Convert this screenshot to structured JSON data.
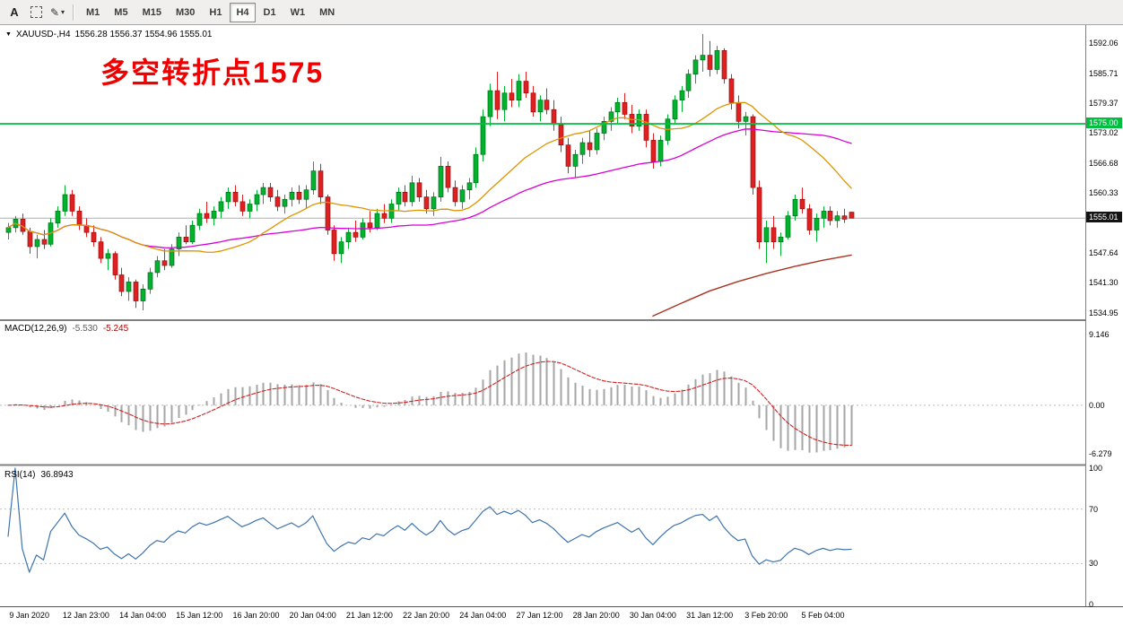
{
  "toolbar": {
    "button_a_label": "A",
    "timeframes": [
      "M1",
      "M5",
      "M15",
      "M30",
      "H1",
      "H4",
      "D1",
      "W1",
      "MN"
    ],
    "active_timeframe": "H4"
  },
  "main_chart": {
    "title": {
      "symbol_tf": "XAUUSD-,H4",
      "ohlc": "1556.28 1556.37 1554.96 1555.01"
    },
    "annotation": "多空转折点1575",
    "hline_label": "1575.00",
    "price_tag": "1555.01",
    "axis_labels": [
      "1592.06",
      "1585.71",
      "1579.37",
      "1573.02",
      "1566.68",
      "1560.33",
      "1547.64",
      "1541.30",
      "1534.95"
    ]
  },
  "macd_panel": {
    "title": "MACD(12,26,9)",
    "main_value": "-5.530",
    "signal_value": "-5.245",
    "axis_labels": [
      "9.146",
      "0.00",
      "-6.279"
    ]
  },
  "rsi_panel": {
    "title": "RSI(14)",
    "value": "36.8943",
    "axis_labels": [
      "100",
      "70",
      "30",
      "0"
    ]
  },
  "colors": {
    "bull": "#00b22d",
    "bull_border": "#006b19",
    "bear": "#e02020",
    "bear_border": "#8f0f0f",
    "ma_fast": "#dd9500",
    "ma_slow": "#d800d8",
    "ma_long": "#aa3322",
    "macd_hist": "#a6a6a6",
    "macd_signal": "#cc2222",
    "rsi": "#3e74ad",
    "hline": "#00bf40",
    "annotation": "#f00000",
    "price_tag_bg": "#141414",
    "current_price_line": "#b0b0b0"
  },
  "chart_data": {
    "type": "candlestick",
    "symbol": "XAUUSD-",
    "timeframe": "H4",
    "current_price": 1555.01,
    "price_axis": {
      "min": 1533.8,
      "max": 1595.5
    },
    "candles": [
      [
        1552,
        1554,
        1550.5,
        1553
      ],
      [
        1553,
        1555.5,
        1552,
        1554.8
      ],
      [
        1554.8,
        1556,
        1551.5,
        1552.2
      ],
      [
        1552.2,
        1553,
        1547.5,
        1549
      ],
      [
        1549,
        1551.5,
        1546.5,
        1550.5
      ],
      [
        1550.5,
        1552.5,
        1548.5,
        1549.5
      ],
      [
        1549.5,
        1555,
        1549,
        1554
      ],
      [
        1554,
        1557.5,
        1553,
        1556.5
      ],
      [
        1556.5,
        1562,
        1555.5,
        1560
      ],
      [
        1560,
        1561,
        1555.5,
        1556.5
      ],
      [
        1556.5,
        1557.5,
        1552.5,
        1553.5
      ],
      [
        1553.5,
        1555,
        1551,
        1552
      ],
      [
        1552,
        1553.5,
        1549,
        1550
      ],
      [
        1550,
        1551,
        1545.5,
        1546.5
      ],
      [
        1546.5,
        1548.5,
        1544,
        1547.5
      ],
      [
        1547.5,
        1548,
        1542,
        1543
      ],
      [
        1543,
        1544.5,
        1538.5,
        1539.5
      ],
      [
        1539.5,
        1542.5,
        1537.5,
        1541.5
      ],
      [
        1541.5,
        1542,
        1536,
        1537.5
      ],
      [
        1537.5,
        1541,
        1535.5,
        1540
      ],
      [
        1540,
        1544.5,
        1539,
        1543.5
      ],
      [
        1543.5,
        1547,
        1542.5,
        1546
      ],
      [
        1546,
        1548.5,
        1544,
        1545
      ],
      [
        1545,
        1549.5,
        1544.5,
        1548.5
      ],
      [
        1548.5,
        1552,
        1547,
        1551
      ],
      [
        1551,
        1553.5,
        1549.5,
        1550
      ],
      [
        1550,
        1554.5,
        1549.5,
        1553.5
      ],
      [
        1553.5,
        1557,
        1552.5,
        1556
      ],
      [
        1556,
        1558.5,
        1554,
        1555
      ],
      [
        1555,
        1557.5,
        1553.5,
        1556.5
      ],
      [
        1556.5,
        1559.5,
        1555,
        1558.5
      ],
      [
        1558.5,
        1561.5,
        1557,
        1560.5
      ],
      [
        1560.5,
        1562,
        1557.5,
        1558.5
      ],
      [
        1558.5,
        1560,
        1555.5,
        1556.5
      ],
      [
        1556.5,
        1559,
        1555,
        1558
      ],
      [
        1558,
        1561,
        1556.5,
        1560
      ],
      [
        1560,
        1562.5,
        1558,
        1561.5
      ],
      [
        1561.5,
        1562.5,
        1558.5,
        1559.5
      ],
      [
        1559.5,
        1561,
        1556.5,
        1557.5
      ],
      [
        1557.5,
        1560,
        1556,
        1559
      ],
      [
        1559,
        1561.5,
        1557.5,
        1560.5
      ],
      [
        1560.5,
        1562,
        1558,
        1559
      ],
      [
        1559,
        1562,
        1557,
        1561
      ],
      [
        1561,
        1567,
        1560,
        1565
      ],
      [
        1565,
        1566.5,
        1558,
        1559.5
      ],
      [
        1559.5,
        1560,
        1551.5,
        1552.5
      ],
      [
        1552.5,
        1553.5,
        1546,
        1547.5
      ],
      [
        1547.5,
        1551,
        1545.5,
        1550
      ],
      [
        1550,
        1553,
        1548.5,
        1552
      ],
      [
        1552,
        1554.5,
        1550,
        1551
      ],
      [
        1551,
        1555,
        1550.5,
        1554
      ],
      [
        1554,
        1556.5,
        1552,
        1553
      ],
      [
        1553,
        1557,
        1552.5,
        1556
      ],
      [
        1556,
        1558,
        1554,
        1555
      ],
      [
        1555,
        1559,
        1554,
        1558
      ],
      [
        1558,
        1561.5,
        1556.5,
        1560.5
      ],
      [
        1560.5,
        1562,
        1557.5,
        1558.5
      ],
      [
        1558.5,
        1564,
        1557.5,
        1562.5
      ],
      [
        1562.5,
        1563.5,
        1558.5,
        1559.5
      ],
      [
        1559.5,
        1561,
        1556,
        1557
      ],
      [
        1557,
        1560.5,
        1555.5,
        1559.5
      ],
      [
        1559.5,
        1568,
        1558.5,
        1566
      ],
      [
        1566,
        1567,
        1560.5,
        1561.5
      ],
      [
        1561.5,
        1563,
        1557.5,
        1558.5
      ],
      [
        1558.5,
        1562,
        1557,
        1561
      ],
      [
        1561,
        1563.5,
        1559,
        1562.5
      ],
      [
        1562.5,
        1570,
        1561.5,
        1568.5
      ],
      [
        1568.5,
        1578,
        1567,
        1576.5
      ],
      [
        1576.5,
        1583.5,
        1574.5,
        1582
      ],
      [
        1582,
        1586,
        1576,
        1578
      ],
      [
        1578,
        1583,
        1575.5,
        1581.5
      ],
      [
        1581.5,
        1584.5,
        1578.5,
        1580
      ],
      [
        1580,
        1585.5,
        1578.5,
        1584
      ],
      [
        1584,
        1586,
        1580.5,
        1581.5
      ],
      [
        1581.5,
        1583,
        1576.5,
        1577.5
      ],
      [
        1577.5,
        1581,
        1575.5,
        1580
      ],
      [
        1580,
        1582.5,
        1577,
        1578
      ],
      [
        1578,
        1580,
        1573.5,
        1575
      ],
      [
        1575,
        1576.5,
        1569,
        1570.5
      ],
      [
        1570.5,
        1572,
        1564.5,
        1566
      ],
      [
        1566,
        1569.5,
        1563.5,
        1568.5
      ],
      [
        1568.5,
        1572,
        1566.5,
        1571
      ],
      [
        1571,
        1573.5,
        1568,
        1569.5
      ],
      [
        1569.5,
        1574,
        1568.5,
        1573
      ],
      [
        1573,
        1576.5,
        1571.5,
        1575.5
      ],
      [
        1575.5,
        1578.5,
        1573.5,
        1577.5
      ],
      [
        1577.5,
        1580.5,
        1575,
        1579.5
      ],
      [
        1579.5,
        1581.5,
        1576,
        1577
      ],
      [
        1577,
        1579,
        1573,
        1574.5
      ],
      [
        1574.5,
        1578,
        1573.5,
        1577
      ],
      [
        1577,
        1578,
        1570,
        1571.5
      ],
      [
        1571.5,
        1573,
        1565.5,
        1567
      ],
      [
        1567,
        1572.5,
        1566,
        1571.5
      ],
      [
        1571.5,
        1577,
        1570.5,
        1576
      ],
      [
        1576,
        1581,
        1575,
        1580
      ],
      [
        1580,
        1583,
        1577.5,
        1582
      ],
      [
        1582,
        1586.5,
        1580.5,
        1585.5
      ],
      [
        1585.5,
        1589.5,
        1583.5,
        1588.5
      ],
      [
        1588.5,
        1594,
        1586,
        1589.5
      ],
      [
        1589.5,
        1592.5,
        1585,
        1586.5
      ],
      [
        1586.5,
        1591.5,
        1585.5,
        1590.5
      ],
      [
        1590.5,
        1591,
        1583.5,
        1584.5
      ],
      [
        1584.5,
        1585.5,
        1578,
        1579.5
      ],
      [
        1579.5,
        1581,
        1574,
        1575.5
      ],
      [
        1575.5,
        1577.5,
        1572.5,
        1576.5
      ],
      [
        1576.5,
        1577,
        1560,
        1561.5
      ],
      [
        1561.5,
        1563,
        1548.5,
        1550
      ],
      [
        1550,
        1554.5,
        1545.5,
        1553
      ],
      [
        1553,
        1555.5,
        1548.5,
        1550
      ],
      [
        1550,
        1552,
        1547,
        1551
      ],
      [
        1551,
        1556.5,
        1550.5,
        1555.5
      ],
      [
        1555.5,
        1560,
        1554.5,
        1559
      ],
      [
        1559,
        1561.5,
        1556,
        1557
      ],
      [
        1557,
        1558,
        1551.5,
        1552.5
      ],
      [
        1552.5,
        1556,
        1550,
        1555
      ],
      [
        1555,
        1557.5,
        1553,
        1556.5
      ],
      [
        1556.5,
        1557.5,
        1553.5,
        1554.5
      ],
      [
        1554.5,
        1556.5,
        1553,
        1555.5
      ],
      [
        1555.5,
        1557,
        1554,
        1554.8
      ],
      [
        1556.28,
        1556.37,
        1554.96,
        1555.01
      ]
    ],
    "x_labels": [
      {
        "text": "9 Jan 2020",
        "i": 3
      },
      {
        "text": "12 Jan 23:00",
        "i": 11
      },
      {
        "text": "14 Jan 04:00",
        "i": 19
      },
      {
        "text": "15 Jan 12:00",
        "i": 27
      },
      {
        "text": "16 Jan 20:00",
        "i": 35
      },
      {
        "text": "20 Jan 04:00",
        "i": 43
      },
      {
        "text": "21 Jan 12:00",
        "i": 51
      },
      {
        "text": "22 Jan 20:00",
        "i": 59
      },
      {
        "text": "24 Jan 04:00",
        "i": 67
      },
      {
        "text": "27 Jan 12:00",
        "i": 75
      },
      {
        "text": "28 Jan 20:00",
        "i": 83
      },
      {
        "text": "30 Jan 04:00",
        "i": 91
      },
      {
        "text": "31 Jan 12:00",
        "i": 99
      },
      {
        "text": "3 Feb 20:00",
        "i": 107
      },
      {
        "text": "5 Feb 04:00",
        "i": 115
      }
    ],
    "overlays": {
      "hline_price": 1575.0,
      "ma_fast_period": 20,
      "ma_slow_period": 50,
      "ma_long_points": [
        [
          91,
          1534.3
        ],
        [
          95,
          1537.0
        ],
        [
          99,
          1539.6
        ],
        [
          103,
          1541.6
        ],
        [
          107,
          1543.3
        ],
        [
          111,
          1544.8
        ],
        [
          115,
          1546.1
        ],
        [
          119,
          1547.2
        ]
      ]
    },
    "macd": {
      "params": [
        12,
        26,
        9
      ],
      "range": {
        "min": -7.4,
        "max": 10.6
      },
      "levels": [
        0
      ]
    },
    "rsi": {
      "period": 14,
      "range": {
        "min": 0,
        "max": 100
      },
      "levels": [
        30,
        70
      ]
    }
  }
}
